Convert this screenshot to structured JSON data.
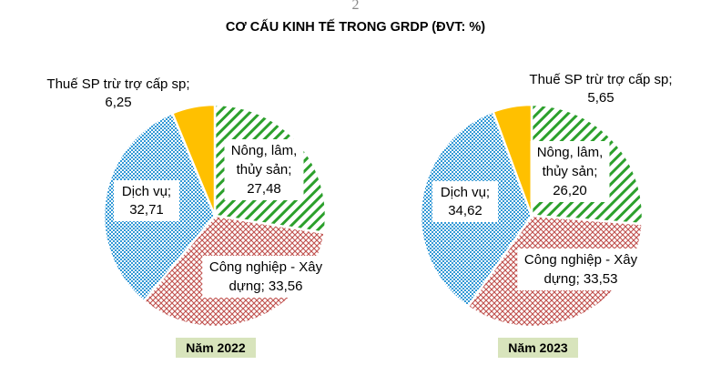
{
  "page_number": "2",
  "title": "CƠ CẤU KINH TẾ TRONG GRDP (ĐVT: %)",
  "colors": {
    "nong_lam_thuy_san": "#2ca02c",
    "cong_nghiep_xay_dung": "#c0504d",
    "dich_vu": "#3399d6",
    "thue": "#ffc000",
    "year_label_bg": "#d8e4bc"
  },
  "chart_data": [
    {
      "type": "pie",
      "year_label": "Năm 2022",
      "slices": [
        {
          "key": "nong",
          "label_lines": [
            "Nông, lâm,",
            "thủy sản;",
            "27,48"
          ],
          "value": 27.48
        },
        {
          "key": "cn",
          "label_lines": [
            "Công nghiệp - Xây",
            "dựng; 33,56"
          ],
          "value": 33.56
        },
        {
          "key": "dv",
          "label_lines": [
            "Dịch vụ;",
            "32,71"
          ],
          "value": 32.71
        },
        {
          "key": "thue",
          "label_lines": [
            "Thuế SP trừ trợ cấp sp;",
            "6,25"
          ],
          "value": 6.25
        }
      ]
    },
    {
      "type": "pie",
      "year_label": "Năm 2023",
      "slices": [
        {
          "key": "nong",
          "label_lines": [
            "Nông, lâm,",
            "thủy sản;",
            "26,20"
          ],
          "value": 26.2
        },
        {
          "key": "cn",
          "label_lines": [
            "Công nghiệp - Xây",
            "dựng; 33,53"
          ],
          "value": 33.53
        },
        {
          "key": "dv",
          "label_lines": [
            "Dịch vụ;",
            "34,62"
          ],
          "value": 34.62
        },
        {
          "key": "thue",
          "label_lines": [
            "Thuế SP trừ trợ cấp sp;",
            "5,65"
          ],
          "value": 5.65
        }
      ]
    }
  ]
}
